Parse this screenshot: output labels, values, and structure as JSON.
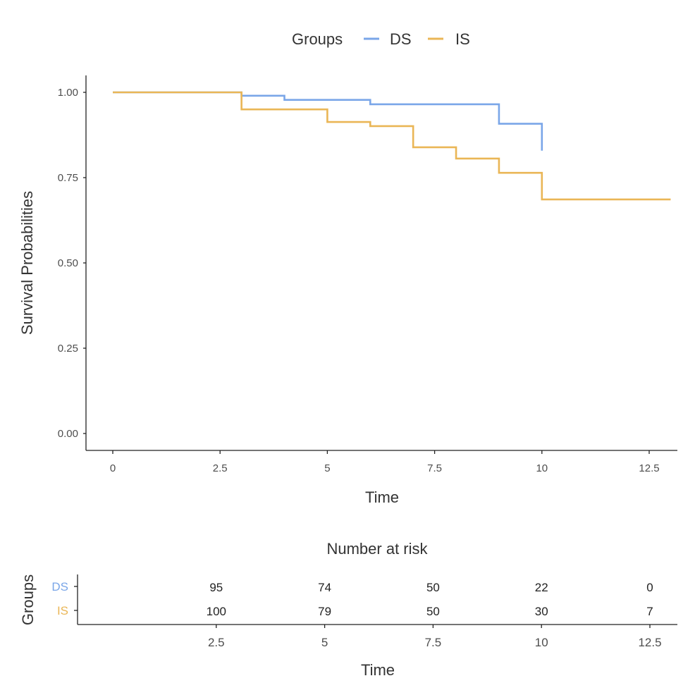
{
  "chart_data": [
    {
      "type": "line",
      "subtype": "kaplan-meier-step",
      "title": "",
      "xlabel": "Time",
      "ylabel": "Survival Probabilities",
      "xlim": [
        -0.62,
        13.15
      ],
      "ylim": [
        -0.05,
        1.05
      ],
      "x_ticks": [
        0,
        2.5,
        5,
        7.5,
        10,
        12.5
      ],
      "x_tick_labels": [
        "0",
        "2.5",
        "5",
        "7.5",
        "10",
        "12.5"
      ],
      "y_ticks": [
        0,
        0.25,
        0.5,
        0.75,
        1.0
      ],
      "y_tick_labels": [
        "0.00",
        "0.25",
        "0.50",
        "0.75",
        "1.00"
      ],
      "grid": false,
      "legend": {
        "title": "Groups",
        "placement": "top",
        "entries": [
          {
            "label": "DS",
            "color": "#7aa6e8"
          },
          {
            "label": "IS",
            "color": "#eab656"
          }
        ]
      },
      "series": [
        {
          "name": "DS",
          "color": "#7aa6e8",
          "steps": [
            {
              "time": 0,
              "survival": 1.0
            },
            {
              "time": 3,
              "survival": 0.99
            },
            {
              "time": 4,
              "survival": 0.978
            },
            {
              "time": 6,
              "survival": 0.965
            },
            {
              "time": 9,
              "survival": 0.908
            },
            {
              "time": 10,
              "survival": 0.829
            }
          ],
          "end_time": 10
        },
        {
          "name": "IS",
          "color": "#eab656",
          "steps": [
            {
              "time": 0,
              "survival": 1.0
            },
            {
              "time": 3,
              "survival": 0.95
            },
            {
              "time": 5,
              "survival": 0.913
            },
            {
              "time": 6,
              "survival": 0.901
            },
            {
              "time": 7,
              "survival": 0.839
            },
            {
              "time": 8,
              "survival": 0.806
            },
            {
              "time": 9,
              "survival": 0.764
            },
            {
              "time": 10,
              "survival": 0.686
            }
          ],
          "end_time": 13
        }
      ]
    },
    {
      "type": "table",
      "title": "Number at risk",
      "xlabel": "Time",
      "ylabel": "Groups",
      "xlim": [
        -0.62,
        13.15
      ],
      "x_ticks": [
        2.5,
        5,
        7.5,
        10,
        12.5
      ],
      "x_tick_labels": [
        "2.5",
        "5",
        "7.5",
        "10",
        "12.5"
      ],
      "rows": [
        {
          "group": "DS",
          "color": "#7aa6e8",
          "values": [
            "95",
            "74",
            "50",
            "22",
            "0"
          ]
        },
        {
          "group": "IS",
          "color": "#eab656",
          "values": [
            "100",
            "79",
            "50",
            "30",
            "7"
          ]
        }
      ]
    }
  ]
}
